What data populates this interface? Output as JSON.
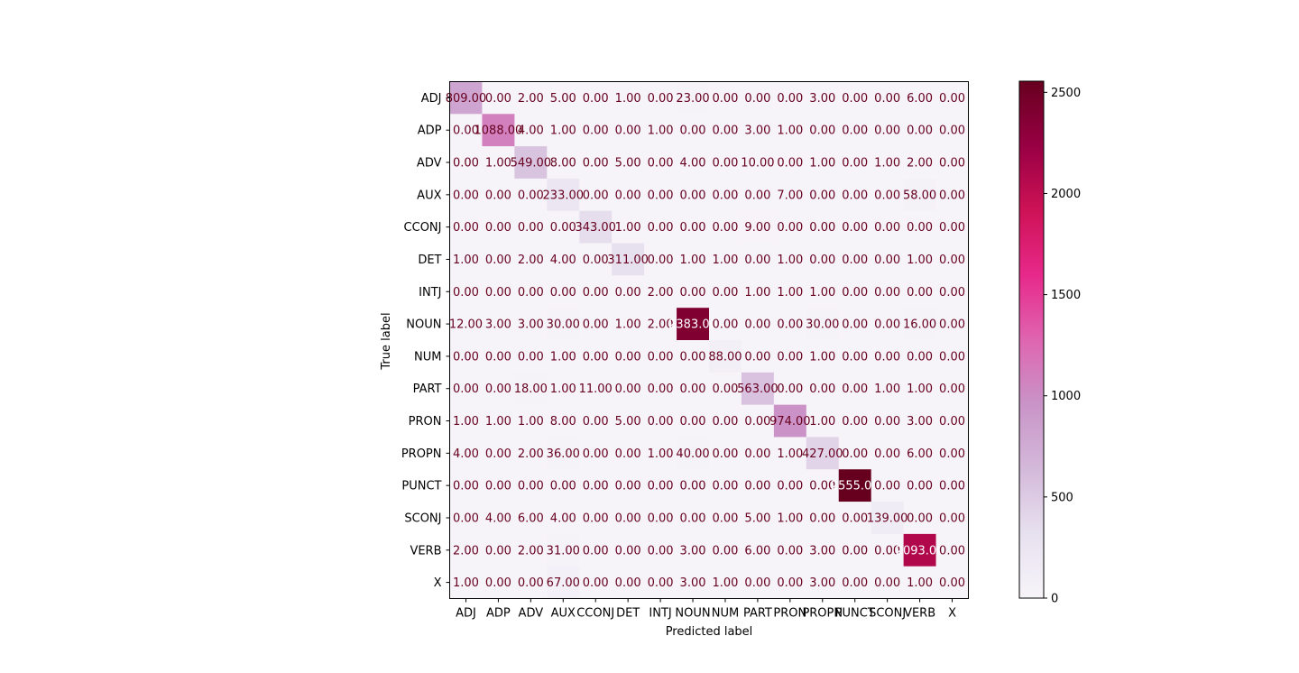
{
  "chart_data": {
    "type": "heatmap",
    "title": "",
    "xlabel": "Predicted label",
    "ylabel": "True label",
    "x_categories": [
      "ADJ",
      "ADP",
      "ADV",
      "AUX",
      "CCONJ",
      "DET",
      "INTJ",
      "NOUN",
      "NUM",
      "PART",
      "PRON",
      "PROPN",
      "PUNCT",
      "SCONJ",
      "VERB",
      "X"
    ],
    "y_categories": [
      "ADJ",
      "ADP",
      "ADV",
      "AUX",
      "CCONJ",
      "DET",
      "INTJ",
      "NOUN",
      "NUM",
      "PART",
      "PRON",
      "PROPN",
      "PUNCT",
      "SCONJ",
      "VERB",
      "X"
    ],
    "values": [
      [
        809,
        0,
        2,
        5,
        0,
        1,
        0,
        23,
        0,
        0,
        0,
        3,
        0,
        0,
        6,
        0
      ],
      [
        0,
        1088,
        4,
        1,
        0,
        0,
        1,
        0,
        0,
        3,
        1,
        0,
        0,
        0,
        0,
        0
      ],
      [
        0,
        1,
        549,
        8,
        0,
        5,
        0,
        4,
        0,
        10,
        0,
        1,
        0,
        1,
        2,
        0
      ],
      [
        0,
        0,
        0,
        233,
        0,
        0,
        0,
        0,
        0,
        0,
        7,
        0,
        0,
        0,
        58,
        0
      ],
      [
        0,
        0,
        0,
        0,
        343,
        1,
        0,
        0,
        0,
        9,
        0,
        0,
        0,
        0,
        0,
        0
      ],
      [
        1,
        0,
        2,
        4,
        0,
        311,
        0,
        1,
        1,
        0,
        1,
        0,
        0,
        0,
        1,
        0
      ],
      [
        0,
        0,
        0,
        0,
        0,
        0,
        2,
        0,
        0,
        1,
        1,
        1,
        0,
        0,
        0,
        0
      ],
      [
        12,
        3,
        3,
        30,
        0,
        1,
        2,
        2383,
        0,
        0,
        0,
        30,
        0,
        0,
        16,
        0
      ],
      [
        0,
        0,
        0,
        1,
        0,
        0,
        0,
        0,
        88,
        0,
        0,
        1,
        0,
        0,
        0,
        0
      ],
      [
        0,
        0,
        18,
        1,
        11,
        0,
        0,
        0,
        0,
        563,
        0,
        0,
        0,
        1,
        1,
        0
      ],
      [
        1,
        1,
        1,
        8,
        0,
        5,
        0,
        0,
        0,
        0,
        974,
        1,
        0,
        0,
        3,
        0
      ],
      [
        4,
        0,
        2,
        36,
        0,
        0,
        1,
        40,
        0,
        0,
        1,
        427,
        0,
        0,
        6,
        0
      ],
      [
        0,
        0,
        0,
        0,
        0,
        0,
        0,
        0,
        0,
        0,
        0,
        0,
        2555,
        0,
        0,
        0
      ],
      [
        0,
        4,
        6,
        4,
        0,
        0,
        0,
        0,
        0,
        5,
        1,
        0,
        0,
        139,
        0,
        0
      ],
      [
        2,
        0,
        2,
        31,
        0,
        0,
        0,
        3,
        0,
        6,
        0,
        3,
        0,
        0,
        2093,
        0
      ],
      [
        1,
        0,
        0,
        67,
        0,
        0,
        0,
        3,
        1,
        0,
        0,
        3,
        0,
        0,
        1,
        0
      ]
    ],
    "value_format": "2 decimals",
    "colormap": "PuRd",
    "colormap_stops": [
      "#f7f4f9",
      "#e7e1ef",
      "#d4b9da",
      "#c994c7",
      "#df65b0",
      "#e7298a",
      "#ce1256",
      "#980043",
      "#67001f"
    ],
    "text_color_light": "#ffffff",
    "text_color_dark": "#67001f",
    "colorbar": {
      "vmin": 0,
      "vmax": 2555,
      "ticks": [
        0,
        500,
        1000,
        1500,
        2000,
        2500
      ],
      "tick_labels": [
        "0",
        "500",
        "1000",
        "1500",
        "2000",
        "2500"
      ]
    }
  }
}
